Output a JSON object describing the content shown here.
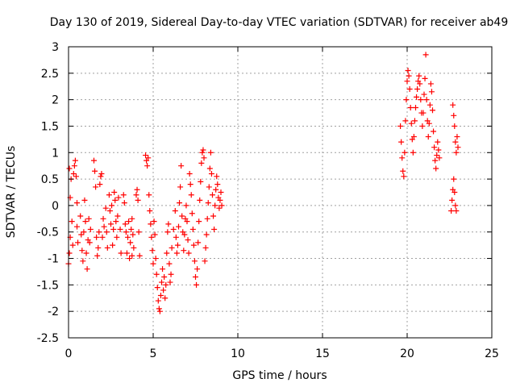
{
  "chart_data": {
    "type": "scatter",
    "title": "Day 130 of 2019, Sidereal Day-to-day VTEC variation (SDTVAR) for receiver ab49",
    "xlabel": "GPS time / hours",
    "ylabel": "SDTVAR / TECUs",
    "xlim": [
      0,
      25
    ],
    "ylim": [
      -2.5,
      3
    ],
    "xticks": [
      0,
      5,
      10,
      15,
      20,
      25
    ],
    "xtick_labels": [
      "0",
      "5",
      "10",
      "15",
      "20",
      "25"
    ],
    "yticks": [
      -2.5,
      -2,
      -1.5,
      -1,
      -0.5,
      0,
      0.5,
      1,
      1.5,
      2,
      2.5,
      3
    ],
    "ytick_labels": [
      "-2.5",
      "-2",
      "-1.5",
      "-1",
      "-0.5",
      "0",
      "0.5",
      "1",
      "1.5",
      "2",
      "2.5",
      "3"
    ],
    "grid": true,
    "marker": "+",
    "color": "#ff0000",
    "series": [
      {
        "name": "SDTVAR",
        "points": [
          [
            0.0,
            -1.1
          ],
          [
            0.05,
            -0.9
          ],
          [
            0.05,
            0.7
          ],
          [
            0.1,
            0.15
          ],
          [
            0.1,
            -0.6
          ],
          [
            0.15,
            0.5
          ],
          [
            0.2,
            -0.3
          ],
          [
            0.25,
            -0.75
          ],
          [
            0.3,
            0.6
          ],
          [
            0.35,
            0.75
          ],
          [
            0.4,
            0.85
          ],
          [
            0.45,
            0.55
          ],
          [
            0.5,
            0.05
          ],
          [
            0.5,
            -0.4
          ],
          [
            0.55,
            -0.7
          ],
          [
            0.7,
            -0.2
          ],
          [
            0.75,
            -0.55
          ],
          [
            0.8,
            -0.85
          ],
          [
            0.85,
            -1.05
          ],
          [
            0.9,
            -0.5
          ],
          [
            0.95,
            0.1
          ],
          [
            1.0,
            -0.3
          ],
          [
            1.05,
            -0.9
          ],
          [
            1.1,
            -1.2
          ],
          [
            1.15,
            -0.65
          ],
          [
            1.2,
            -0.25
          ],
          [
            1.25,
            -0.7
          ],
          [
            1.3,
            -0.45
          ],
          [
            1.5,
            0.85
          ],
          [
            1.55,
            0.65
          ],
          [
            1.6,
            0.35
          ],
          [
            1.65,
            -0.6
          ],
          [
            1.7,
            -0.95
          ],
          [
            1.75,
            -0.8
          ],
          [
            1.8,
            -0.5
          ],
          [
            1.85,
            0.4
          ],
          [
            1.9,
            0.55
          ],
          [
            1.95,
            0.6
          ],
          [
            2.0,
            -0.6
          ],
          [
            2.05,
            -0.25
          ],
          [
            2.1,
            -0.4
          ],
          [
            2.2,
            -0.05
          ],
          [
            2.25,
            -0.5
          ],
          [
            2.3,
            -0.8
          ],
          [
            2.4,
            0.2
          ],
          [
            2.45,
            -0.1
          ],
          [
            2.5,
            -0.35
          ],
          [
            2.55,
            0.0
          ],
          [
            2.6,
            -0.75
          ],
          [
            2.65,
            -0.45
          ],
          [
            2.7,
            0.25
          ],
          [
            2.75,
            0.1
          ],
          [
            2.8,
            -0.3
          ],
          [
            2.85,
            -0.6
          ],
          [
            2.9,
            -0.2
          ],
          [
            2.95,
            0.15
          ],
          [
            3.05,
            -0.45
          ],
          [
            3.1,
            -0.9
          ],
          [
            3.25,
            0.2
          ],
          [
            3.3,
            0.05
          ],
          [
            3.35,
            -0.35
          ],
          [
            3.4,
            -0.5
          ],
          [
            3.45,
            -0.9
          ],
          [
            3.5,
            -0.6
          ],
          [
            3.55,
            -0.3
          ],
          [
            3.6,
            -1.0
          ],
          [
            3.65,
            -0.7
          ],
          [
            3.7,
            -0.45
          ],
          [
            3.75,
            -0.95
          ],
          [
            3.75,
            -0.25
          ],
          [
            3.8,
            -0.55
          ],
          [
            3.85,
            -0.8
          ],
          [
            4.0,
            0.2
          ],
          [
            4.05,
            0.3
          ],
          [
            4.1,
            0.1
          ],
          [
            4.15,
            -0.5
          ],
          [
            4.2,
            -0.95
          ],
          [
            4.55,
            0.95
          ],
          [
            4.6,
            0.85
          ],
          [
            4.65,
            0.75
          ],
          [
            4.7,
            0.9
          ],
          [
            4.75,
            0.2
          ],
          [
            4.8,
            -0.1
          ],
          [
            4.85,
            -0.35
          ],
          [
            4.9,
            -0.6
          ],
          [
            4.95,
            -0.85
          ],
          [
            5.0,
            -1.1
          ],
          [
            5.05,
            -0.3
          ],
          [
            5.1,
            -0.55
          ],
          [
            5.15,
            -1.0
          ],
          [
            5.2,
            -1.3
          ],
          [
            5.25,
            -1.55
          ],
          [
            5.3,
            -1.8
          ],
          [
            5.35,
            -1.95
          ],
          [
            5.4,
            -2.0
          ],
          [
            5.45,
            -1.7
          ],
          [
            5.5,
            -1.45
          ],
          [
            5.55,
            -1.2
          ],
          [
            5.6,
            -1.6
          ],
          [
            5.65,
            -1.35
          ],
          [
            5.7,
            -1.75
          ],
          [
            5.75,
            -1.5
          ],
          [
            5.8,
            -0.9
          ],
          [
            5.85,
            -0.5
          ],
          [
            5.9,
            -0.35
          ],
          [
            5.95,
            -1.1
          ],
          [
            6.0,
            -1.45
          ],
          [
            6.05,
            -1.3
          ],
          [
            6.1,
            -0.8
          ],
          [
            6.2,
            -0.45
          ],
          [
            6.3,
            -0.1
          ],
          [
            6.35,
            -0.6
          ],
          [
            6.4,
            -0.9
          ],
          [
            6.45,
            -0.75
          ],
          [
            6.5,
            -0.4
          ],
          [
            6.55,
            0.05
          ],
          [
            6.6,
            0.35
          ],
          [
            6.65,
            0.75
          ],
          [
            6.7,
            -0.2
          ],
          [
            6.75,
            -0.5
          ],
          [
            6.8,
            -0.85
          ],
          [
            6.85,
            -0.55
          ],
          [
            6.9,
            -0.25
          ],
          [
            6.95,
            0.0
          ],
          [
            7.0,
            -0.3
          ],
          [
            7.05,
            -0.65
          ],
          [
            7.1,
            -0.9
          ],
          [
            7.15,
            0.6
          ],
          [
            7.2,
            0.4
          ],
          [
            7.25,
            0.2
          ],
          [
            7.3,
            -0.15
          ],
          [
            7.35,
            -0.45
          ],
          [
            7.4,
            -0.75
          ],
          [
            7.45,
            -1.05
          ],
          [
            7.5,
            -1.35
          ],
          [
            7.55,
            -1.5
          ],
          [
            7.6,
            -1.2
          ],
          [
            7.65,
            -0.7
          ],
          [
            7.7,
            -0.3
          ],
          [
            7.75,
            0.1
          ],
          [
            7.8,
            0.45
          ],
          [
            7.85,
            0.8
          ],
          [
            7.9,
            1.0
          ],
          [
            7.95,
            1.05
          ],
          [
            8.0,
            0.9
          ],
          [
            8.05,
            -1.05
          ],
          [
            8.1,
            -0.8
          ],
          [
            8.15,
            -0.55
          ],
          [
            8.2,
            -0.25
          ],
          [
            8.25,
            0.05
          ],
          [
            8.3,
            0.35
          ],
          [
            8.35,
            0.7
          ],
          [
            8.4,
            1.0
          ],
          [
            8.45,
            0.6
          ],
          [
            8.5,
            0.2
          ],
          [
            8.55,
            -0.2
          ],
          [
            8.6,
            -0.45
          ],
          [
            8.65,
            0.0
          ],
          [
            8.7,
            0.3
          ],
          [
            8.75,
            0.55
          ],
          [
            8.8,
            0.4
          ],
          [
            8.85,
            0.15
          ],
          [
            8.9,
            -0.05
          ],
          [
            8.95,
            0.1
          ],
          [
            9.0,
            0.25
          ],
          [
            9.05,
            0.0
          ],
          [
            19.6,
            1.5
          ],
          [
            19.65,
            1.2
          ],
          [
            19.7,
            0.9
          ],
          [
            19.75,
            0.65
          ],
          [
            19.8,
            0.55
          ],
          [
            19.85,
            1.0
          ],
          [
            19.9,
            1.6
          ],
          [
            19.95,
            2.0
          ],
          [
            20.0,
            2.35
          ],
          [
            20.05,
            2.55
          ],
          [
            20.1,
            2.45
          ],
          [
            20.15,
            2.2
          ],
          [
            20.2,
            1.85
          ],
          [
            20.25,
            1.55
          ],
          [
            20.3,
            1.25
          ],
          [
            20.35,
            1.0
          ],
          [
            20.4,
            1.3
          ],
          [
            20.45,
            1.6
          ],
          [
            20.5,
            1.85
          ],
          [
            20.55,
            2.05
          ],
          [
            20.6,
            2.2
          ],
          [
            20.65,
            2.35
          ],
          [
            20.7,
            2.45
          ],
          [
            20.75,
            2.3
          ],
          [
            20.8,
            2.0
          ],
          [
            20.85,
            1.75
          ],
          [
            20.9,
            1.5
          ],
          [
            20.95,
            1.75
          ],
          [
            21.0,
            2.1
          ],
          [
            21.05,
            2.4
          ],
          [
            21.1,
            2.85
          ],
          [
            21.15,
            2.0
          ],
          [
            21.2,
            1.6
          ],
          [
            21.25,
            1.3
          ],
          [
            21.3,
            1.55
          ],
          [
            21.35,
            1.9
          ],
          [
            21.4,
            2.3
          ],
          [
            21.45,
            2.15
          ],
          [
            21.5,
            1.8
          ],
          [
            21.55,
            1.4
          ],
          [
            21.6,
            1.1
          ],
          [
            21.65,
            0.85
          ],
          [
            21.7,
            0.7
          ],
          [
            21.75,
            0.95
          ],
          [
            21.8,
            1.2
          ],
          [
            21.85,
            1.05
          ],
          [
            21.9,
            0.9
          ],
          [
            22.6,
            -0.1
          ],
          [
            22.65,
            0.1
          ],
          [
            22.7,
            0.3
          ],
          [
            22.75,
            0.5
          ],
          [
            22.8,
            0.25
          ],
          [
            22.85,
            0.0
          ],
          [
            22.9,
            -0.1
          ],
          [
            22.7,
            1.9
          ],
          [
            22.75,
            1.7
          ],
          [
            22.8,
            1.5
          ],
          [
            22.85,
            1.2
          ],
          [
            22.9,
            1.0
          ],
          [
            22.95,
            1.3
          ],
          [
            23.0,
            1.1
          ]
        ]
      }
    ]
  }
}
